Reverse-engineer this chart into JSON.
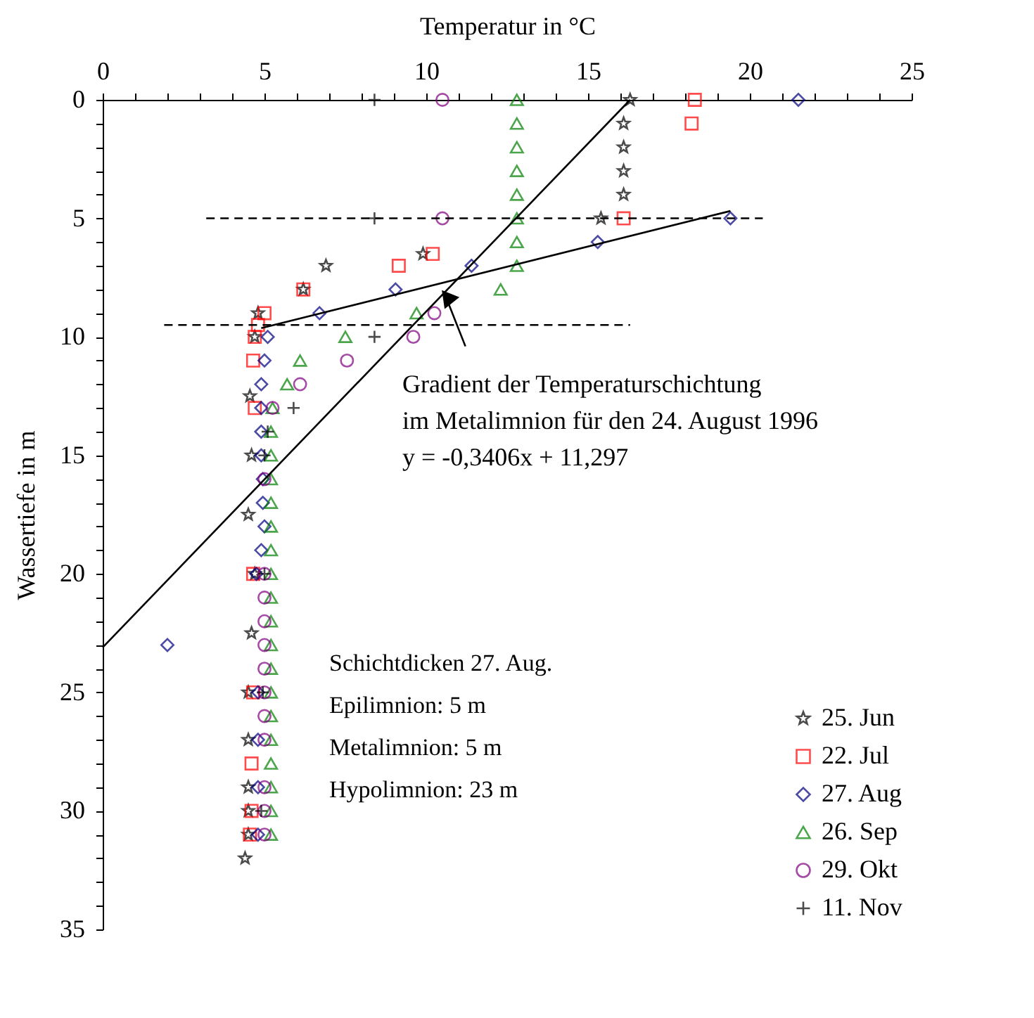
{
  "chart_data": {
    "type": "scatter",
    "xlabel": "Temperatur in °C",
    "ylabel": "Wassertiefe in m",
    "xlim": [
      0,
      25
    ],
    "ylim": [
      35,
      0
    ],
    "xticks": [
      0,
      {
        "value": 1,
        "label": null
      },
      {
        "value": 2,
        "label": null
      },
      {
        "value": 3,
        "label": null
      },
      {
        "value": 4,
        "label": null
      },
      5,
      {
        "value": 6,
        "label": null
      },
      {
        "value": 7,
        "label": null
      },
      {
        "value": 8,
        "label": null
      },
      {
        "value": 9,
        "label": null
      },
      10,
      {
        "value": 11,
        "label": null
      },
      {
        "value": 12,
        "label": null
      },
      {
        "value": 13,
        "label": null
      },
      {
        "value": 14,
        "label": null
      },
      15,
      {
        "value": 16,
        "label": null
      },
      {
        "value": 17,
        "label": null
      },
      {
        "value": 18,
        "label": null
      },
      {
        "value": 19,
        "label": null
      },
      20,
      {
        "value": 21,
        "label": null
      },
      {
        "value": 22,
        "label": null
      },
      {
        "value": 23,
        "label": null
      },
      {
        "value": 24,
        "label": null
      },
      25
    ],
    "yticks": [
      0,
      {
        "value": 1,
        "label": null
      },
      {
        "value": 2,
        "label": null
      },
      {
        "value": 3,
        "label": null
      },
      {
        "value": 4,
        "label": null
      },
      5,
      {
        "value": 6,
        "label": null
      },
      {
        "value": 7,
        "label": null
      },
      {
        "value": 8,
        "label": null
      },
      {
        "value": 9,
        "label": null
      },
      10,
      {
        "value": 11,
        "label": null
      },
      {
        "value": 12,
        "label": null
      },
      {
        "value": 13,
        "label": null
      },
      {
        "value": 14,
        "label": null
      },
      15,
      {
        "value": 16,
        "label": null
      },
      {
        "value": 17,
        "label": null
      },
      {
        "value": 18,
        "label": null
      },
      {
        "value": 19,
        "label": null
      },
      20,
      {
        "value": 21,
        "label": null
      },
      {
        "value": 22,
        "label": null
      },
      {
        "value": 23,
        "label": null
      },
      {
        "value": 24,
        "label": null
      },
      25,
      {
        "value": 26,
        "label": null
      },
      {
        "value": 27,
        "label": null
      },
      {
        "value": 28,
        "label": null
      },
      {
        "value": 29,
        "label": null
      },
      30,
      {
        "value": 31,
        "label": null
      },
      {
        "value": 32,
        "label": null
      },
      {
        "value": 33,
        "label": null
      },
      {
        "value": 34,
        "label": null
      },
      35
    ],
    "grid": false,
    "legend": "bottom right",
    "series": [
      {
        "name": "25. Jun",
        "color": "#000000",
        "marker": "star",
        "x": [
          16.3,
          16.1,
          16.1,
          16.1,
          16.1,
          15.4,
          9.9,
          6.9,
          6.2,
          4.8,
          4.7,
          4.55,
          4.6,
          4.5,
          4.7,
          4.6,
          4.5,
          4.5,
          4.5,
          4.5,
          4.5,
          4.4
        ],
        "values": [
          0,
          1,
          2,
          3,
          4,
          5,
          6.5,
          7,
          8,
          9,
          10,
          12.5,
          15,
          17.5,
          20,
          22.5,
          25,
          27,
          29,
          30,
          31,
          32
        ]
      },
      {
        "name": "22. Jul",
        "color": "#ff0000",
        "marker": "square",
        "x": [
          18.3,
          18.2,
          16.1,
          10.2,
          9.15,
          6.2,
          5.0,
          4.8,
          4.7,
          4.65,
          4.7,
          4.65,
          4.65,
          4.6,
          4.6,
          4.55
        ],
        "values": [
          0,
          1,
          5,
          6.5,
          7,
          8,
          9,
          9.5,
          10,
          11,
          13,
          20,
          25,
          28,
          30,
          31
        ]
      },
      {
        "name": "27. Aug",
        "color": "#000080",
        "marker": "diamond",
        "x": [
          21.5,
          19.4,
          15.3,
          11.4,
          9.05,
          6.7,
          5.1,
          5.0,
          4.9,
          4.9,
          4.9,
          4.9,
          4.95,
          4.95,
          5.0,
          4.9,
          4.75,
          2.0,
          4.8,
          4.8,
          4.8,
          4.8
        ],
        "values": [
          0,
          5,
          6,
          7,
          8,
          9,
          10,
          11,
          12,
          13,
          14,
          15,
          16,
          17,
          18,
          19,
          20,
          23,
          25,
          27,
          29,
          31
        ]
      },
      {
        "name": "26. Sep",
        "color": "#008000",
        "marker": "triangle",
        "x": [
          12.8,
          12.8,
          12.8,
          12.8,
          12.8,
          12.8,
          12.8,
          12.8,
          12.3,
          9.7,
          7.5,
          6.1,
          5.7,
          5.25,
          5.2,
          5.2,
          5.2,
          5.2,
          5.2,
          5.2,
          5.2,
          5.2,
          5.2,
          5.2,
          5.2,
          5.2,
          5.2,
          5.2,
          5.2,
          5.2,
          5.2,
          5.2
        ],
        "values": [
          0,
          1,
          2,
          3,
          4,
          5,
          6,
          7,
          8,
          9,
          10,
          11,
          12,
          13,
          14,
          15,
          16,
          17,
          18,
          19,
          20,
          21,
          22,
          23,
          24,
          25,
          26,
          27,
          28,
          29,
          30,
          31
        ]
      },
      {
        "name": "29. Okt",
        "color": "#800080",
        "marker": "circle",
        "x": [
          10.5,
          10.5,
          10.25,
          9.6,
          7.55,
          6.1,
          5.25,
          5.0,
          5.0,
          5.0,
          5.0,
          5.0,
          5.0,
          5.0,
          5.0,
          5.0,
          5.0,
          5.0,
          5.0
        ],
        "values": [
          0,
          5,
          9,
          10,
          11,
          12,
          13,
          16,
          20,
          21,
          22,
          23,
          24,
          25,
          26,
          27,
          29,
          30,
          31
        ]
      },
      {
        "name": "11. Nov",
        "color": "#000000",
        "marker": "cross",
        "x": [
          8.4,
          8.4,
          8.4,
          5.9,
          5.1,
          5.0,
          5.0,
          4.95,
          4.9
        ],
        "values": [
          0,
          5,
          10,
          13,
          14,
          15,
          20,
          25,
          30
        ]
      },
      {
        "type": "line",
        "color": "#000000",
        "x": [
          16.3,
          0
        ],
        "values": [
          0,
          23.1
        ]
      },
      {
        "type": "line",
        "color": "#000000",
        "x": [
          4.9,
          19.4
        ],
        "values": [
          9.63,
          4.69
        ]
      },
      {
        "type": "line",
        "line_style": "dashed",
        "color": "#000000",
        "x": [
          3.2,
          20.4
        ],
        "values": [
          5,
          5
        ]
      },
      {
        "type": "line",
        "line_style": "dashed",
        "color": "#000000",
        "x": [
          1.9,
          16.3
        ],
        "values": [
          9.5,
          9.5
        ]
      }
    ],
    "annotations": [
      {
        "text": "Gradient der Temperaturschichtung\nim Metalimnion für den 24. August 1996\ny = -0,3406x + 11,297",
        "x": 10.66,
        "y": 8.5
      },
      "Schichtdicken 27. Aug.\nEpilimnion: 5 m\nMetalimnion: 5 m\nHypolimnion: 23 m"
    ]
  }
}
